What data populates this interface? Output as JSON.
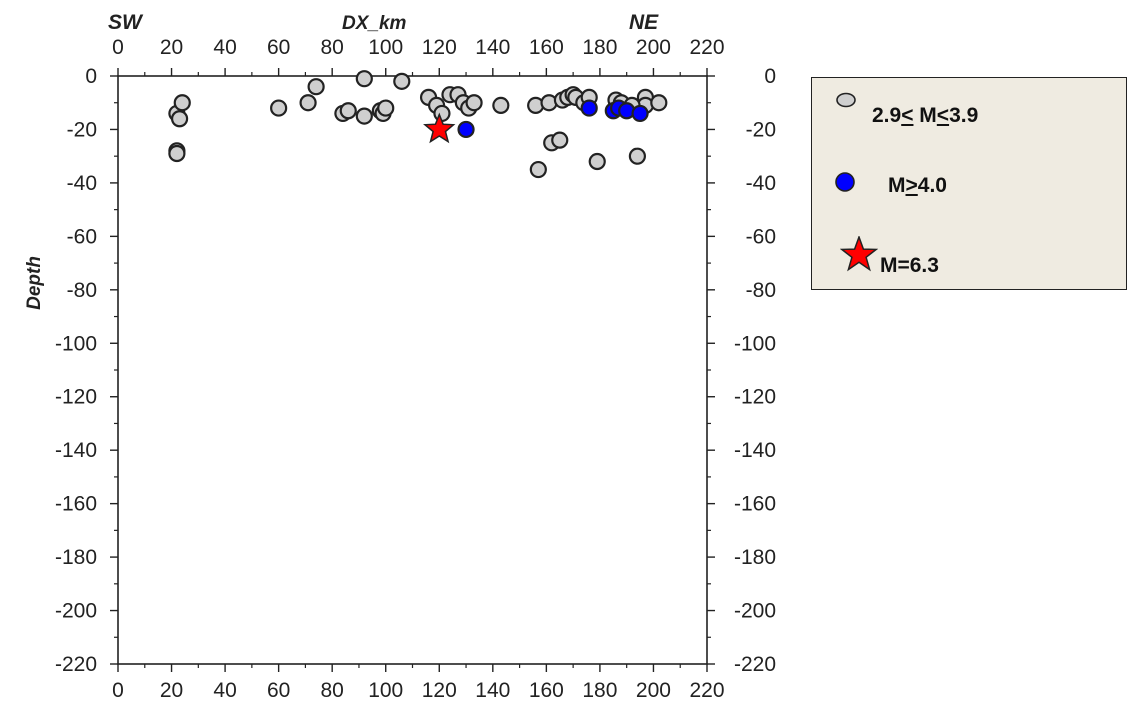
{
  "chart_data": {
    "type": "scatter",
    "top_left_label": "SW",
    "top_center_label": "DX_km",
    "top_right_label": "NE",
    "ylabel": "Depth",
    "xlim": [
      0,
      220
    ],
    "ylim": [
      -220,
      0
    ],
    "x_ticks": [
      0,
      20,
      40,
      60,
      80,
      100,
      120,
      140,
      160,
      180,
      200,
      220
    ],
    "y_ticks": [
      0,
      -20,
      -40,
      -60,
      -80,
      -100,
      -120,
      -140,
      -160,
      -180,
      -200,
      -220
    ],
    "series": [
      {
        "name": "2.9≤ M≤3.9",
        "label_parts": [
          "2.9",
          "<",
          " M",
          "<",
          "3.9"
        ],
        "marker": "circle",
        "color": "#cfcfcf",
        "points": [
          [
            22,
            -14
          ],
          [
            23,
            -16
          ],
          [
            24,
            -10
          ],
          [
            22,
            -28
          ],
          [
            22,
            -29
          ],
          [
            60,
            -12
          ],
          [
            71,
            -10
          ],
          [
            74,
            -4
          ],
          [
            84,
            -14
          ],
          [
            86,
            -13
          ],
          [
            92,
            -15
          ],
          [
            92,
            -1
          ],
          [
            98,
            -13
          ],
          [
            99,
            -14
          ],
          [
            100,
            -12
          ],
          [
            106,
            -2
          ],
          [
            116,
            -8
          ],
          [
            119,
            -11
          ],
          [
            121,
            -14
          ],
          [
            124,
            -7
          ],
          [
            127,
            -7
          ],
          [
            129,
            -10
          ],
          [
            131,
            -12
          ],
          [
            133,
            -10
          ],
          [
            143,
            -11
          ],
          [
            156,
            -11
          ],
          [
            161,
            -10
          ],
          [
            166,
            -9
          ],
          [
            168,
            -8
          ],
          [
            170,
            -7
          ],
          [
            171,
            -8
          ],
          [
            174,
            -10
          ],
          [
            176,
            -8
          ],
          [
            162,
            -25
          ],
          [
            165,
            -24
          ],
          [
            157,
            -35
          ],
          [
            179,
            -32
          ],
          [
            194,
            -30
          ],
          [
            197,
            -8
          ],
          [
            197,
            -11
          ],
          [
            202,
            -10
          ],
          [
            186,
            -9
          ],
          [
            188,
            -10
          ],
          [
            192,
            -11
          ]
        ]
      },
      {
        "name": "M≥4.0",
        "label_parts": [
          "M",
          ">",
          "4.0"
        ],
        "marker": "circle",
        "color": "#0000ff",
        "points": [
          [
            130,
            -20
          ],
          [
            176,
            -12
          ],
          [
            185,
            -13
          ],
          [
            187,
            -12
          ],
          [
            190,
            -13
          ],
          [
            195,
            -14
          ]
        ]
      },
      {
        "name": "M=6.3",
        "label_parts": [
          "M=6.3"
        ],
        "marker": "star",
        "color": "#ff0000",
        "points": [
          [
            120,
            -20
          ]
        ]
      }
    ],
    "legend_position": "right"
  }
}
